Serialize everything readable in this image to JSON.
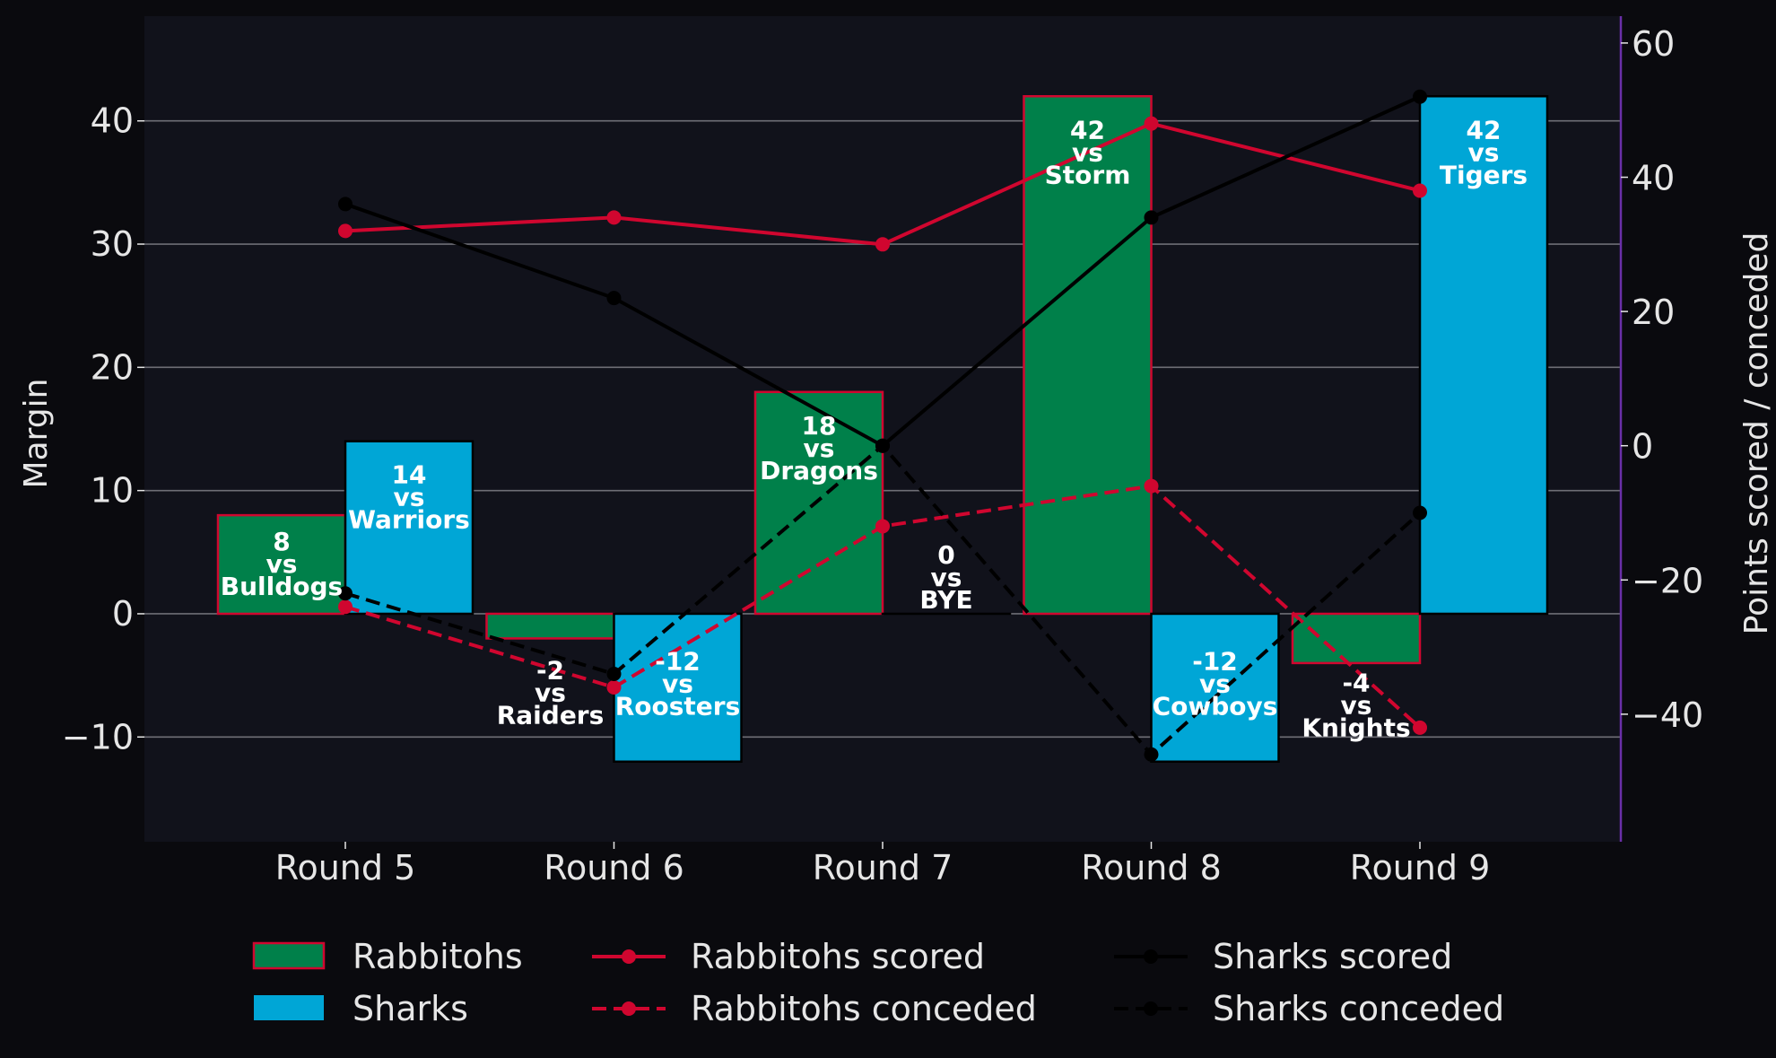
{
  "chart_data": {
    "type": "bar",
    "categories": [
      "Round 5",
      "Round 6",
      "Round 7",
      "Round 8",
      "Round 9"
    ],
    "ylabel": "Margin",
    "y2label": "Points scored / conceded",
    "ylim": [
      -18.5,
      48.5
    ],
    "y2lim": [
      -59,
      64
    ],
    "yticks": [
      "−10",
      "0",
      "10",
      "20",
      "30",
      "40"
    ],
    "y2ticks": [
      "−40",
      "−20",
      "0",
      "20",
      "40",
      "60"
    ],
    "grid": true,
    "legend_position": "bottom",
    "series": [
      {
        "name": "Rabbitohs",
        "kind": "bar",
        "color": "#00804a",
        "edge": "#d0062f",
        "values": [
          8,
          -2,
          18,
          42,
          -4
        ],
        "labels": [
          [
            "8",
            "vs",
            "Bulldogs"
          ],
          [
            "-2",
            "vs",
            "Raiders"
          ],
          [
            "18",
            "vs",
            "Dragons"
          ],
          [
            "42",
            "vs",
            "Storm"
          ],
          [
            "-4",
            "vs",
            "Knights"
          ]
        ]
      },
      {
        "name": "Sharks",
        "kind": "bar",
        "color": "#00a6d6",
        "edge": "#000000",
        "values": [
          14,
          -12,
          0,
          -12,
          42
        ],
        "labels": [
          [
            "14",
            "vs",
            "Warriors"
          ],
          [
            "-12",
            "vs",
            "Roosters"
          ],
          [
            "0",
            "vs",
            "BYE"
          ],
          [
            "-12",
            "vs",
            "Cowboys"
          ],
          [
            "42",
            "vs",
            "Tigers"
          ]
        ]
      },
      {
        "name": "Rabbitohs scored",
        "kind": "line",
        "color": "#d0062f",
        "dash": false,
        "axis": "right",
        "values": [
          32,
          34,
          30,
          48,
          38
        ]
      },
      {
        "name": "Rabbitohs conceded",
        "kind": "line",
        "color": "#d0062f",
        "dash": true,
        "axis": "right",
        "values": [
          -24,
          -36,
          -12,
          -6,
          -42
        ]
      },
      {
        "name": "Sharks scored",
        "kind": "line",
        "color": "#000000",
        "dash": false,
        "axis": "right",
        "values": [
          36,
          22,
          0,
          34,
          52
        ]
      },
      {
        "name": "Sharks conceded",
        "kind": "line",
        "color": "#000000",
        "dash": true,
        "axis": "right",
        "values": [
          -22,
          -34,
          0,
          -46,
          -10
        ]
      }
    ]
  }
}
